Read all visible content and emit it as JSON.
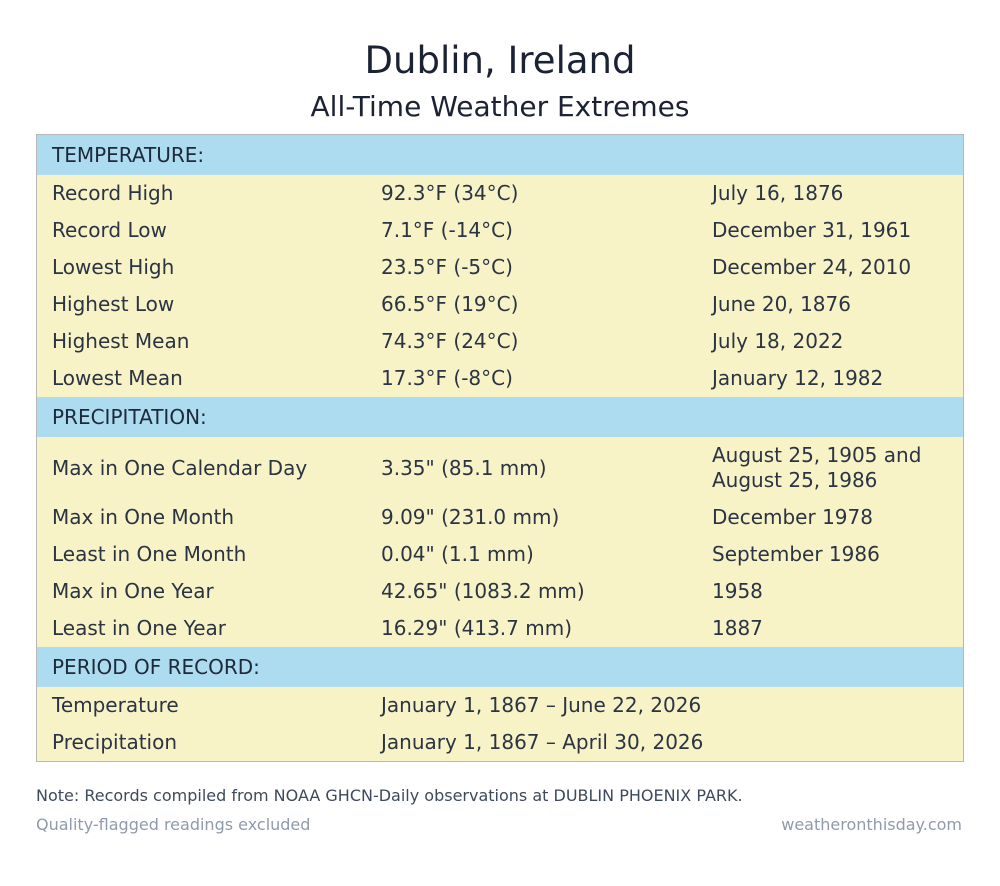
{
  "header": {
    "title": "Dublin, Ireland",
    "subtitle": "All-Time Weather Extremes"
  },
  "sections": {
    "temperature": {
      "label": "TEMPERATURE:",
      "rows": [
        {
          "label": "Record High",
          "value": "92.3°F (34°C)",
          "date": "July 16, 1876"
        },
        {
          "label": "Record Low",
          "value": "7.1°F (-14°C)",
          "date": "December 31, 1961"
        },
        {
          "label": "Lowest High",
          "value": "23.5°F (-5°C)",
          "date": "December 24, 2010"
        },
        {
          "label": "Highest Low",
          "value": "66.5°F (19°C)",
          "date": "June 20, 1876"
        },
        {
          "label": "Highest Mean",
          "value": "74.3°F (24°C)",
          "date": "July 18, 2022"
        },
        {
          "label": "Lowest Mean",
          "value": "17.3°F (-8°C)",
          "date": "January 12, 1982"
        }
      ]
    },
    "precipitation": {
      "label": "PRECIPITATION:",
      "rows": [
        {
          "label": "Max in One Calendar Day",
          "value": "3.35\" (85.1 mm)",
          "date_line1": "August 25, 1905 and",
          "date_line2": "August 25, 1986"
        },
        {
          "label": "Max in One Month",
          "value": "9.09\" (231.0 mm)",
          "date": "December 1978"
        },
        {
          "label": "Least in One Month",
          "value": "0.04\" (1.1 mm)",
          "date": "September 1986"
        },
        {
          "label": "Max in One Year",
          "value": "42.65\" (1083.2 mm)",
          "date": "1958"
        },
        {
          "label": "Least in One Year",
          "value": "16.29\" (413.7 mm)",
          "date": "1887"
        }
      ]
    },
    "period": {
      "label": "PERIOD OF RECORD:",
      "rows": [
        {
          "label": "Temperature",
          "value": "January 1, 1867 – June 22, 2026"
        },
        {
          "label": "Precipitation",
          "value": "January 1, 1867 – April 30, 2026"
        }
      ]
    }
  },
  "footer": {
    "note": "Note: Records compiled from NOAA GHCN-Daily observations at DUBLIN PHOENIX PARK.",
    "qualifier": "Quality-flagged readings excluded",
    "source": "weatheronthisday.com"
  },
  "colors": {
    "section_header_bg": "#addbef",
    "row_bg": "#f8f2c7",
    "border": "#b8b8b8"
  }
}
